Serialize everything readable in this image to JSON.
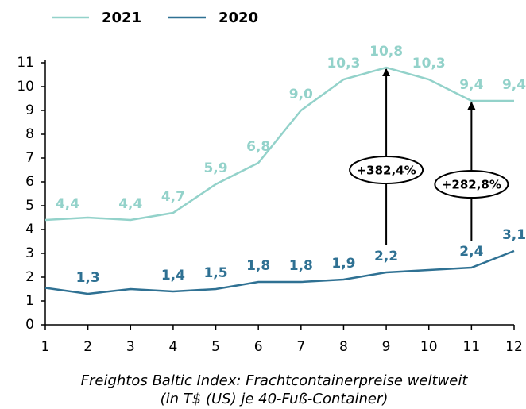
{
  "chart_data": {
    "type": "line",
    "caption": [
      "Freightos Baltic Index: Frachtcontainerpreise weltweit",
      "(in T$ (US) je 40-Fuß-Container)"
    ],
    "x": [
      1,
      2,
      3,
      4,
      5,
      6,
      7,
      8,
      9,
      10,
      11,
      12
    ],
    "xlim": [
      1,
      12
    ],
    "xticks": [
      1,
      2,
      3,
      4,
      5,
      6,
      7,
      8,
      9,
      10,
      11,
      12
    ],
    "ylim": [
      0,
      11
    ],
    "yticks": [
      0,
      1,
      2,
      3,
      4,
      5,
      6,
      7,
      8,
      9,
      10,
      11
    ],
    "legend": "top-left",
    "series": [
      {
        "name": "2021",
        "color": "#93d2ca",
        "values": [
          4.4,
          4.5,
          4.4,
          4.7,
          5.9,
          6.8,
          9.0,
          10.3,
          10.8,
          10.3,
          9.4,
          9.4
        ],
        "value_labels": [
          "4,4",
          null,
          "4,4",
          "4,7",
          "5,9",
          "6,8",
          "9,0",
          "10,3",
          "10,8",
          "10,3",
          "9,4",
          "9,4"
        ]
      },
      {
        "name": "2020",
        "color": "#2f7193",
        "values": [
          1.55,
          1.3,
          1.5,
          1.4,
          1.5,
          1.8,
          1.8,
          1.9,
          2.2,
          2.3,
          2.4,
          3.1
        ],
        "value_labels": [
          null,
          "1,3",
          null,
          "1,4",
          "1,5",
          "1,8",
          "1,8",
          "1,9",
          "2,2",
          null,
          "2,4",
          "3,1"
        ]
      }
    ],
    "annotations": [
      {
        "text": "+382,4%",
        "x": 9
      },
      {
        "text": "+282,8%",
        "x": 11
      }
    ]
  }
}
